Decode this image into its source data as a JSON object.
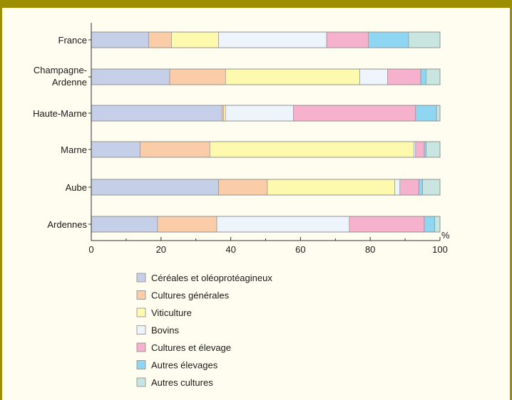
{
  "chart_data": {
    "type": "bar",
    "orientation": "horizontal",
    "stacked": true,
    "categories": [
      "France",
      "Champagne-\nArdenne",
      "Haute-Marne",
      "Marne",
      "Aube",
      "Ardennes"
    ],
    "series": [
      {
        "name": "Céréales et oléoprotéagineux",
        "color": "#c6cfe8",
        "values": [
          16.5,
          22.5,
          37.5,
          14,
          36.5,
          19
        ]
      },
      {
        "name": "Cultures générales",
        "color": "#fbcca8",
        "values": [
          6.5,
          16,
          0.5,
          20,
          14,
          17
        ]
      },
      {
        "name": "Viticulture",
        "color": "#fdfaae",
        "values": [
          13.5,
          38.5,
          0.5,
          58.5,
          36.5,
          0
        ]
      },
      {
        "name": "Bovins",
        "color": "#eef4fb",
        "values": [
          31,
          8,
          19.5,
          0.5,
          1.5,
          38
        ]
      },
      {
        "name": "Cultures et élevage",
        "color": "#f6b1cd",
        "values": [
          12,
          9.5,
          35,
          2.5,
          5.5,
          21.5
        ]
      },
      {
        "name": "Autres élevages",
        "color": "#8fd6f2",
        "values": [
          11.5,
          1.5,
          6,
          0.5,
          1,
          3
        ]
      },
      {
        "name": "Autres cultures",
        "color": "#c8e6df",
        "values": [
          9,
          4,
          1,
          4,
          5,
          1.5
        ]
      }
    ],
    "xticks": [
      "0",
      "20",
      "40",
      "60",
      "80",
      "100"
    ],
    "xlim": [
      0,
      100
    ],
    "unit": "%",
    "grid": false,
    "legend_position": "bottom"
  }
}
